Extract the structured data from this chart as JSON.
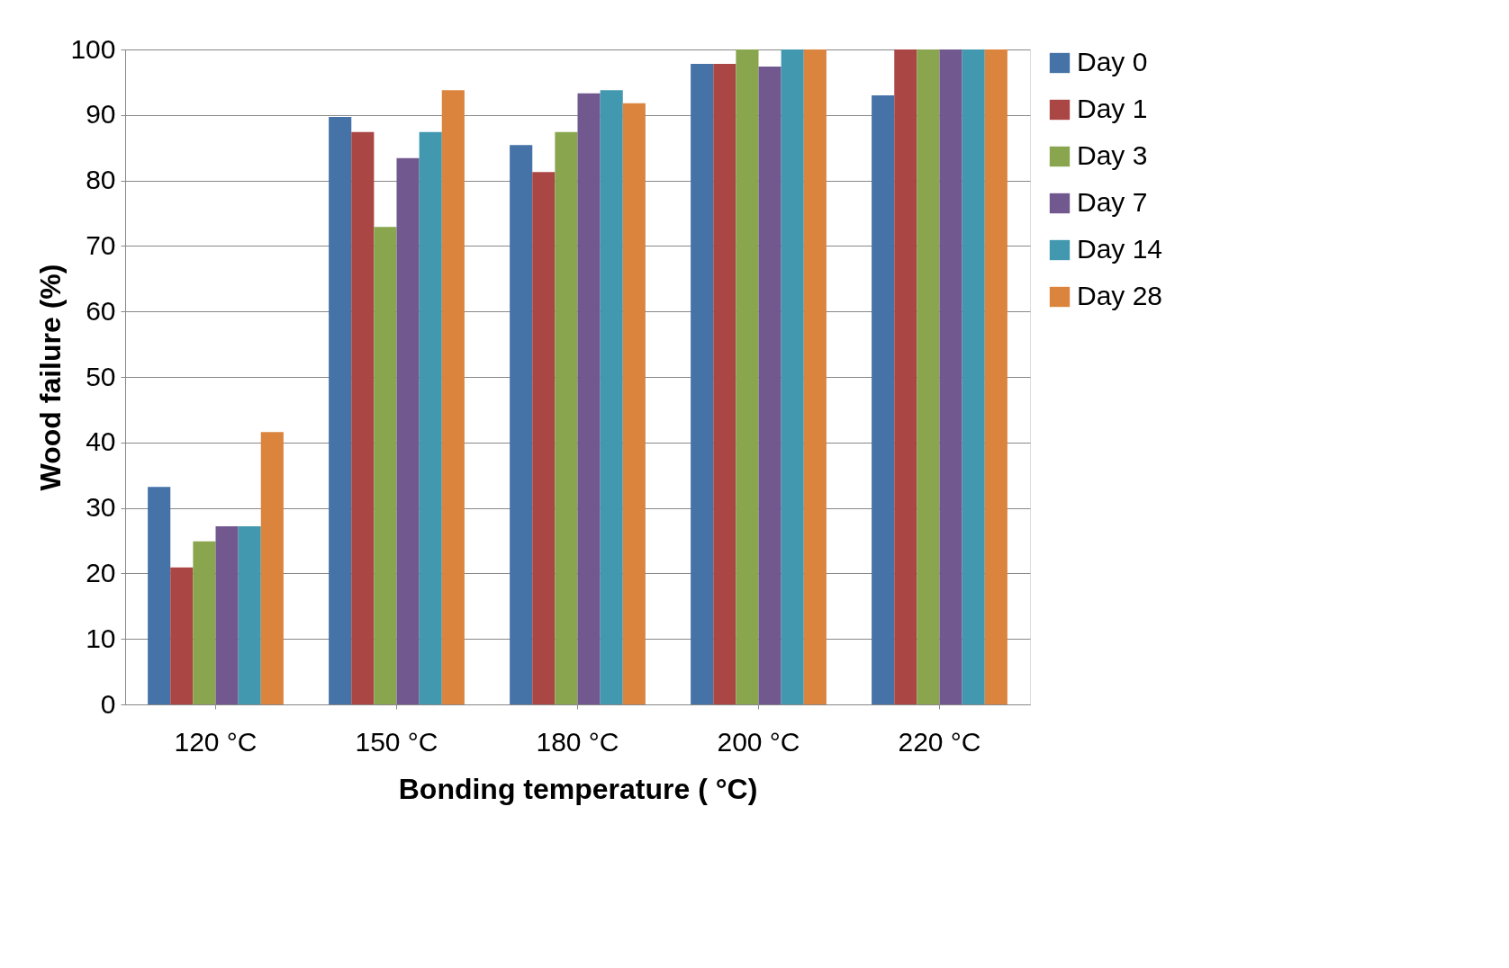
{
  "chart_data": {
    "type": "bar",
    "xlabel": "Bonding temperature ( °C)",
    "ylabel": "Wood failure (%)",
    "categories": [
      "120 °C",
      "150 °C",
      "180 °C",
      "200 °C",
      "220 °C"
    ],
    "series": [
      {
        "name": "Day 0",
        "color": "#4572a7",
        "values": [
          33.2,
          89.7,
          85.4,
          97.8,
          93.0
        ]
      },
      {
        "name": "Day 1",
        "color": "#aa4643",
        "values": [
          20.9,
          87.4,
          81.3,
          97.8,
          100
        ]
      },
      {
        "name": "Day 3",
        "color": "#89a54e",
        "values": [
          24.9,
          72.9,
          87.4,
          100,
          100
        ]
      },
      {
        "name": "Day 7",
        "color": "#71588f",
        "values": [
          27.2,
          83.4,
          93.3,
          97.4,
          100
        ]
      },
      {
        "name": "Day 14",
        "color": "#4198af",
        "values": [
          27.2,
          87.4,
          93.8,
          100,
          100
        ]
      },
      {
        "name": "Day 28",
        "color": "#db843d",
        "values": [
          41.6,
          93.8,
          91.8,
          100,
          100
        ]
      }
    ],
    "ylim": [
      0,
      100
    ],
    "yticks": [
      0,
      10,
      20,
      30,
      40,
      50,
      60,
      70,
      80,
      90,
      100
    ],
    "grid": "y",
    "legend": "right"
  }
}
